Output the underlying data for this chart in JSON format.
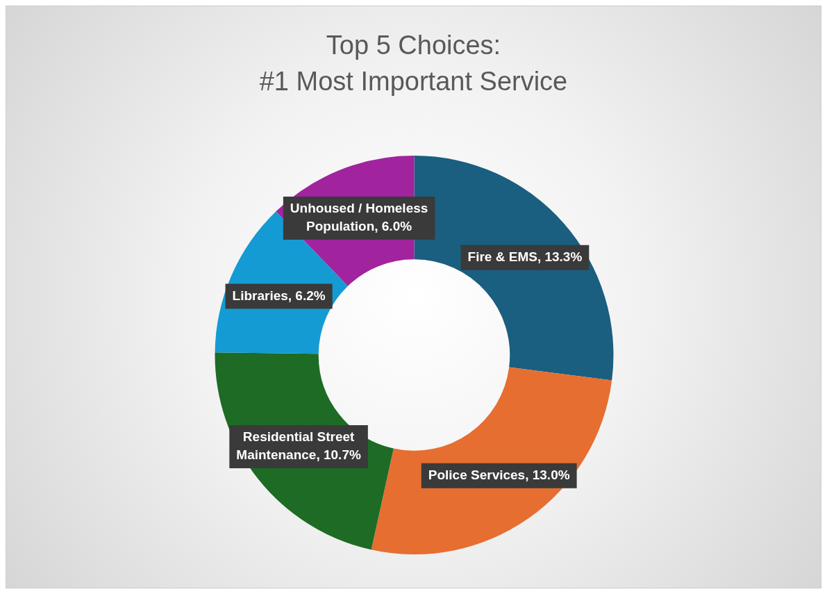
{
  "chart_data": {
    "type": "donut",
    "title": "Top 5 Choices:\n#1 Most Important Service",
    "categories": [
      "Fire & EMS",
      "Police Services",
      "Residential Street Maintenance",
      "Libraries",
      "Unhoused / Homeless Population"
    ],
    "values": [
      13.3,
      13.0,
      10.7,
      6.2,
      6.0
    ],
    "value_labels": [
      "13.3%",
      "13.0%",
      "10.7%",
      "6.2%",
      "6.0%"
    ],
    "colors": [
      "#1a5e80",
      "#e66e30",
      "#1d6b25",
      "#159bd3",
      "#a1239d"
    ],
    "legend": false
  }
}
